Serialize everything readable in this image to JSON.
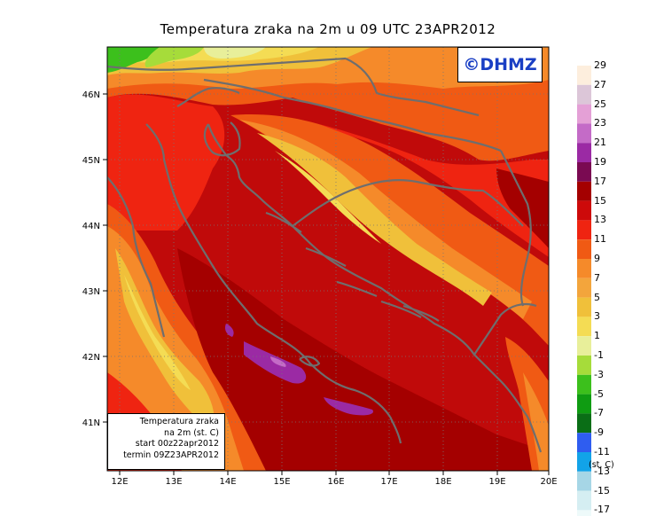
{
  "title": "Temperatura zraka na 2m u 09 UTC 23APR2012",
  "watermark": "©DHMZ",
  "info_box": {
    "line1": "Temperatura zraka",
    "line2": "na 2m (st. C)",
    "line3": "start 00z22apr2012",
    "line4": "termin 09Z23APR2012"
  },
  "longitude_labels": [
    "12E",
    "13E",
    "14E",
    "15E",
    "16E",
    "17E",
    "18E",
    "19E",
    "20E"
  ],
  "latitude_labels": [
    "41N",
    "42N",
    "43N",
    "44N",
    "45N",
    "46N"
  ],
  "legend": {
    "unit": "(st. C)",
    "levels": [
      {
        "label": "29",
        "color": "#fdeedd"
      },
      {
        "label": "27",
        "color": "#dcc6d8"
      },
      {
        "label": "25",
        "color": "#e4a0d6"
      },
      {
        "label": "23",
        "color": "#c46bc7"
      },
      {
        "label": "21",
        "color": "#9b2aa4"
      },
      {
        "label": "19",
        "color": "#7a0a52"
      },
      {
        "label": "17",
        "color": "#a40000"
      },
      {
        "label": "15",
        "color": "#cd0a0a"
      },
      {
        "label": "13",
        "color": "#ef2411"
      },
      {
        "label": "11",
        "color": "#f05a14"
      },
      {
        "label": "9",
        "color": "#f58a2a"
      },
      {
        "label": "7",
        "color": "#f3a53c"
      },
      {
        "label": "5",
        "color": "#f0c03a"
      },
      {
        "label": "3",
        "color": "#f4dc54"
      },
      {
        "label": "1",
        "color": "#e8ef9a"
      },
      {
        "label": "-1",
        "color": "#a6dc3a"
      },
      {
        "label": "-3",
        "color": "#3cc01c"
      },
      {
        "label": "-5",
        "color": "#0f9c12"
      },
      {
        "label": "-7",
        "color": "#0a6e16"
      },
      {
        "label": "-9",
        "color": "#2f5df0"
      },
      {
        "label": "-11",
        "color": "#12a3e8"
      },
      {
        "label": "-13",
        "color": "#a6d6e6"
      },
      {
        "label": "-15",
        "color": "#d5eef2"
      },
      {
        "label": "-17",
        "color": "#eefafa"
      }
    ]
  },
  "colors": {
    "sea_base": "#bf0a0a",
    "coast": "#6e6e6e"
  }
}
